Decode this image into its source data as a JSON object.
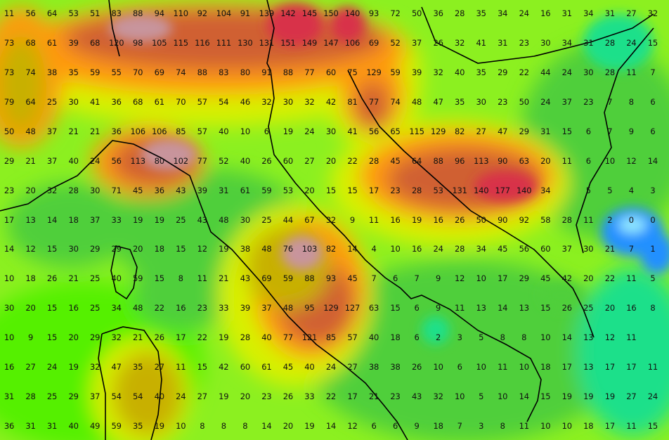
{
  "map": {
    "palette": {
      "base_green": "#8cf020",
      "bright_green": "#55f000",
      "mid_green": "#4fcf3a",
      "teal": "#1ee08a",
      "yellow": "#d8f000",
      "olive": "#c8b000",
      "orange": "#ff9a10",
      "brown": "#d06030",
      "mauve": "#c8949c",
      "red": "#d83048",
      "blue": "#2090ff",
      "light_blue": "#90e8ff"
    },
    "grid": {
      "rows": [
        [
          "11",
          "56",
          "64",
          "53",
          "51",
          "83",
          "88",
          "94",
          "110",
          "92",
          "104",
          "91",
          "139",
          "142",
          "145",
          "150",
          "140",
          "93",
          "72",
          "50",
          "36",
          "28",
          "35",
          "34",
          "24",
          "16",
          "31",
          "34",
          "31",
          "27",
          "32"
        ],
        [
          "73",
          "68",
          "61",
          "39",
          "68",
          "120",
          "98",
          "105",
          "115",
          "116",
          "111",
          "130",
          "131",
          "151",
          "149",
          "147",
          "106",
          "69",
          "52",
          "37",
          "26",
          "32",
          "41",
          "31",
          "23",
          "30",
          "34",
          "31",
          "28",
          "24",
          "15"
        ],
        [
          "73",
          "74",
          "38",
          "35",
          "59",
          "55",
          "70",
          "69",
          "74",
          "88",
          "83",
          "80",
          "91",
          "88",
          "77",
          "60",
          "75",
          "129",
          "59",
          "39",
          "32",
          "40",
          "35",
          "29",
          "22",
          "44",
          "24",
          "30",
          "28",
          "11",
          "7"
        ],
        [
          "79",
          "64",
          "25",
          "30",
          "41",
          "36",
          "68",
          "61",
          "70",
          "57",
          "54",
          "46",
          "32",
          "30",
          "32",
          "42",
          "81",
          "77",
          "74",
          "48",
          "47",
          "35",
          "30",
          "23",
          "50",
          "24",
          "37",
          "23",
          "7",
          "8",
          "6"
        ],
        [
          "50",
          "48",
          "37",
          "21",
          "21",
          "36",
          "106",
          "106",
          "85",
          "57",
          "40",
          "10",
          "6",
          "19",
          "24",
          "30",
          "41",
          "56",
          "65",
          "115",
          "129",
          "82",
          "27",
          "47",
          "29",
          "31",
          "15",
          "6",
          "7",
          "9",
          "6"
        ],
        [
          "29",
          "21",
          "37",
          "40",
          "24",
          "56",
          "113",
          "80",
          "102",
          "77",
          "52",
          "40",
          "26",
          "60",
          "27",
          "20",
          "22",
          "28",
          "45",
          "64",
          "88",
          "96",
          "113",
          "90",
          "63",
          "20",
          "11",
          "6",
          "10",
          "12",
          "14"
        ],
        [
          "23",
          "20",
          "32",
          "28",
          "30",
          "71",
          "45",
          "36",
          "43",
          "39",
          "31",
          "61",
          "59",
          "53",
          "20",
          "15",
          "15",
          "17",
          "23",
          "28",
          "53",
          "131",
          "140",
          "177",
          "140",
          "34",
          "",
          "5",
          "5",
          "4",
          "3"
        ],
        [
          "17",
          "13",
          "14",
          "18",
          "37",
          "33",
          "19",
          "19",
          "25",
          "43",
          "48",
          "30",
          "25",
          "44",
          "67",
          "32",
          "9",
          "11",
          "16",
          "19",
          "16",
          "26",
          "50",
          "90",
          "92",
          "58",
          "28",
          "11",
          "2",
          "0",
          "0"
        ],
        [
          "14",
          "12",
          "15",
          "30",
          "29",
          "29",
          "20",
          "18",
          "15",
          "12",
          "19",
          "38",
          "48",
          "76",
          "103",
          "82",
          "14",
          "4",
          "10",
          "16",
          "24",
          "28",
          "34",
          "45",
          "56",
          "60",
          "37",
          "30",
          "21",
          "7",
          "1"
        ],
        [
          "10",
          "18",
          "26",
          "21",
          "25",
          "40",
          "59",
          "15",
          "8",
          "11",
          "21",
          "43",
          "69",
          "59",
          "88",
          "93",
          "45",
          "7",
          "6",
          "7",
          "9",
          "12",
          "10",
          "17",
          "29",
          "45",
          "42",
          "20",
          "22",
          "11",
          "5"
        ],
        [
          "30",
          "20",
          "15",
          "16",
          "25",
          "34",
          "48",
          "22",
          "16",
          "23",
          "33",
          "39",
          "37",
          "48",
          "95",
          "129",
          "127",
          "63",
          "15",
          "6",
          "9",
          "11",
          "13",
          "14",
          "13",
          "15",
          "26",
          "25",
          "20",
          "16",
          "8"
        ],
        [
          "10",
          "9",
          "15",
          "20",
          "29",
          "32",
          "21",
          "26",
          "17",
          "22",
          "19",
          "28",
          "40",
          "77",
          "121",
          "85",
          "57",
          "40",
          "18",
          "6",
          "2",
          "3",
          "5",
          "8",
          "8",
          "10",
          "14",
          "13",
          "12",
          "11",
          ""
        ],
        [
          "16",
          "27",
          "24",
          "19",
          "32",
          "47",
          "35",
          "27",
          "11",
          "15",
          "42",
          "60",
          "61",
          "45",
          "40",
          "24",
          "27",
          "38",
          "38",
          "26",
          "10",
          "6",
          "10",
          "11",
          "10",
          "18",
          "17",
          "13",
          "17",
          "17",
          "11"
        ],
        [
          "31",
          "28",
          "25",
          "29",
          "37",
          "54",
          "54",
          "40",
          "24",
          "27",
          "19",
          "20",
          "23",
          "26",
          "33",
          "22",
          "17",
          "21",
          "23",
          "43",
          "32",
          "10",
          "5",
          "10",
          "14",
          "15",
          "19",
          "19",
          "19",
          "27",
          "24"
        ],
        [
          "36",
          "31",
          "31",
          "40",
          "49",
          "59",
          "35",
          "19",
          "10",
          "8",
          "8",
          "8",
          "14",
          "20",
          "19",
          "14",
          "12",
          "6",
          "6",
          "9",
          "18",
          "7",
          "3",
          "8",
          "11",
          "10",
          "10",
          "18",
          "17",
          "11",
          "15"
        ]
      ]
    }
  }
}
